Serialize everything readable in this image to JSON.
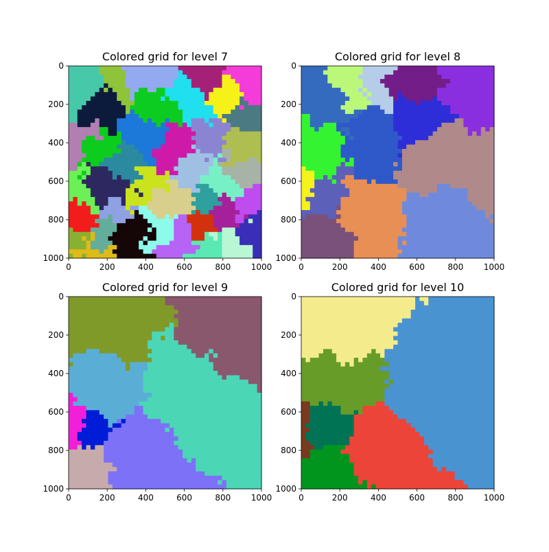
{
  "chart_data": [
    {
      "type": "heatmap",
      "title": "Colored grid for level 7",
      "xlim": [
        0,
        1000
      ],
      "ylim": [
        1000,
        0
      ],
      "xticks": [
        "0",
        "200",
        "400",
        "600",
        "800",
        "1000"
      ],
      "yticks": [
        "0",
        "200",
        "400",
        "600",
        "800",
        "1000"
      ],
      "grid": false,
      "regions": [
        {
          "color": "#47c9a9",
          "center": [
            60,
            150
          ]
        },
        {
          "color": "#0c1a3c",
          "center": [
            160,
            200
          ]
        },
        {
          "color": "#93aaf0",
          "center": [
            370,
            80
          ]
        },
        {
          "color": "#f33cd9",
          "center": [
            950,
            100
          ]
        },
        {
          "color": "#8fc33a",
          "center": [
            280,
            100
          ]
        },
        {
          "color": "#a52178",
          "center": [
            720,
            100
          ]
        },
        {
          "color": "#f6f219",
          "center": [
            810,
            150
          ]
        },
        {
          "color": "#4b7a83",
          "center": [
            920,
            250
          ]
        },
        {
          "color": "#20dfee",
          "center": [
            640,
            180
          ]
        },
        {
          "color": "#0dcc21",
          "center": [
            450,
            230
          ]
        },
        {
          "color": "#1c79da",
          "center": [
            410,
            350
          ]
        },
        {
          "color": "#b17fb1",
          "center": [
            60,
            380
          ]
        },
        {
          "color": "#0ccc1e",
          "center": [
            160,
            430
          ]
        },
        {
          "color": "#8b84d2",
          "center": [
            790,
            390
          ]
        },
        {
          "color": "#9fc0e3",
          "center": [
            660,
            560
          ]
        },
        {
          "color": "#afbe50",
          "center": [
            930,
            430
          ]
        },
        {
          "color": "#2c8aa0",
          "center": [
            250,
            500
          ]
        },
        {
          "color": "#cf1aa9",
          "center": [
            540,
            440
          ]
        },
        {
          "color": "#a8b3a8",
          "center": [
            900,
            570
          ]
        },
        {
          "color": "#2ea09e",
          "center": [
            720,
            680
          ]
        },
        {
          "color": "#78f0c6",
          "center": [
            820,
            610
          ]
        },
        {
          "color": "#cbe31c",
          "center": [
            440,
            620
          ]
        },
        {
          "color": "#6bf056",
          "center": [
            80,
            680
          ]
        },
        {
          "color": "#2e2860",
          "center": [
            200,
            640
          ]
        },
        {
          "color": "#8fa1e2",
          "center": [
            230,
            770
          ]
        },
        {
          "color": "#d7cf8b",
          "center": [
            520,
            700
          ]
        },
        {
          "color": "#be4cee",
          "center": [
            950,
            690
          ]
        },
        {
          "color": "#f31c1c",
          "center": [
            50,
            820
          ]
        },
        {
          "color": "#63ad9b",
          "center": [
            170,
            880
          ]
        },
        {
          "color": "#150707",
          "center": [
            330,
            880
          ]
        },
        {
          "color": "#8cfbe9",
          "center": [
            470,
            820
          ]
        },
        {
          "color": "#b663f6",
          "center": [
            580,
            880
          ]
        },
        {
          "color": "#d3310e",
          "center": [
            690,
            830
          ]
        },
        {
          "color": "#a5219a",
          "center": [
            820,
            760
          ]
        },
        {
          "color": "#b9f6d4",
          "center": [
            860,
            900
          ]
        },
        {
          "color": "#5ae8b3",
          "center": [
            720,
            960
          ]
        },
        {
          "color": "#3a2eb8",
          "center": [
            970,
            880
          ]
        },
        {
          "color": "#debb18",
          "center": [
            110,
            960
          ]
        },
        {
          "color": "#88b131",
          "center": [
            30,
            900
          ]
        }
      ]
    },
    {
      "type": "heatmap",
      "title": "Colored grid for level 8",
      "xlim": [
        0,
        1000
      ],
      "ylim": [
        1000,
        0
      ],
      "xticks": [
        "0",
        "200",
        "400",
        "600",
        "800",
        "1000"
      ],
      "yticks": [
        "0",
        "200",
        "400",
        "600",
        "800",
        "1000"
      ],
      "grid": false,
      "regions": [
        {
          "color": "#356bbf",
          "center": [
            150,
            220
          ]
        },
        {
          "color": "#bbf879",
          "center": [
            300,
            90
          ]
        },
        {
          "color": "#b5cde8",
          "center": [
            370,
            70
          ]
        },
        {
          "color": "#731d88",
          "center": [
            550,
            50
          ]
        },
        {
          "color": "#8a2fdf",
          "center": [
            870,
            150
          ]
        },
        {
          "color": "#2e2ed8",
          "center": [
            620,
            280
          ]
        },
        {
          "color": "#2f59c8",
          "center": [
            350,
            380
          ]
        },
        {
          "color": "#34f431",
          "center": [
            100,
            420
          ]
        },
        {
          "color": "#b0898a",
          "center": [
            700,
            470
          ]
        },
        {
          "color": "#b0898a",
          "center": [
            960,
            500
          ]
        },
        {
          "color": "#6f8adc",
          "center": [
            700,
            780
          ]
        },
        {
          "color": "#e88f55",
          "center": [
            330,
            780
          ]
        },
        {
          "color": "#5c60b9",
          "center": [
            90,
            680
          ]
        },
        {
          "color": "#7a517a",
          "center": [
            130,
            880
          ]
        },
        {
          "color": "#f6f21c",
          "center": [
            15,
            630
          ]
        }
      ]
    },
    {
      "type": "heatmap",
      "title": "Colored grid for level 9",
      "xlim": [
        0,
        1000
      ],
      "ylim": [
        1000,
        0
      ],
      "xticks": [
        "0",
        "200",
        "400",
        "600",
        "800",
        "1000"
      ],
      "yticks": [
        "0",
        "200",
        "400",
        "600",
        "800",
        "1000"
      ],
      "grid": false,
      "regions": [
        {
          "color": "#809a2a",
          "center": [
            180,
            130
          ]
        },
        {
          "color": "#8a586d",
          "center": [
            860,
            150
          ]
        },
        {
          "color": "#4bd6b6",
          "center": [
            600,
            500
          ]
        },
        {
          "color": "#5aaed6",
          "center": [
            140,
            510
          ]
        },
        {
          "color": "#f31ed9",
          "center": [
            20,
            680
          ]
        },
        {
          "color": "#001cd6",
          "center": [
            110,
            700
          ]
        },
        {
          "color": "#7c71f7",
          "center": [
            300,
            830
          ]
        },
        {
          "color": "#c7aaab",
          "center": [
            110,
            880
          ]
        }
      ]
    },
    {
      "type": "heatmap",
      "title": "Colored grid for level 10",
      "xlim": [
        0,
        1000
      ],
      "ylim": [
        1000,
        0
      ],
      "xticks": [
        "0",
        "200",
        "400",
        "600",
        "800",
        "1000"
      ],
      "yticks": [
        "0",
        "200",
        "400",
        "600",
        "800",
        "1000"
      ],
      "grid": false,
      "regions": [
        {
          "color": "#f4ec8c",
          "center": [
            180,
            130
          ]
        },
        {
          "color": "#4a93d1",
          "center": [
            700,
            450
          ]
        },
        {
          "color": "#679c29",
          "center": [
            150,
            480
          ]
        },
        {
          "color": "#ec4438",
          "center": [
            340,
            770
          ]
        },
        {
          "color": "#007355",
          "center": [
            90,
            680
          ]
        },
        {
          "color": "#7a3a20",
          "center": [
            15,
            680
          ]
        },
        {
          "color": "#01951e",
          "center": [
            150,
            890
          ]
        }
      ]
    }
  ]
}
